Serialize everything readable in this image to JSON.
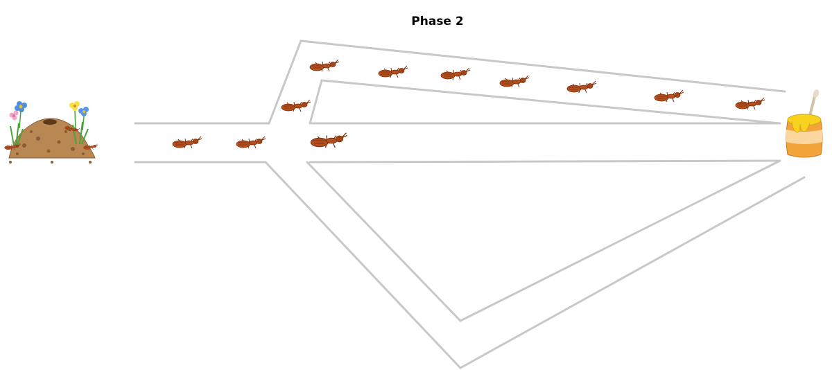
{
  "title": "Phase 2",
  "colors": {
    "path_edge": "#c8c8c8",
    "ant_body": "#b5501e",
    "ant_dark": "#7a2e0c",
    "soil": "#b88752",
    "soil_dark": "#8a5e33",
    "honey": "#f7d21e",
    "pot": "#f2a43a",
    "pot_band": "#fbd7a0"
  },
  "icons": {
    "nest": "anthill-icon",
    "food": "honey-pot-icon",
    "ant": "ant-icon"
  },
  "paths": [
    "main-path",
    "upper-path",
    "lower-path"
  ],
  "ant_count": 11
}
